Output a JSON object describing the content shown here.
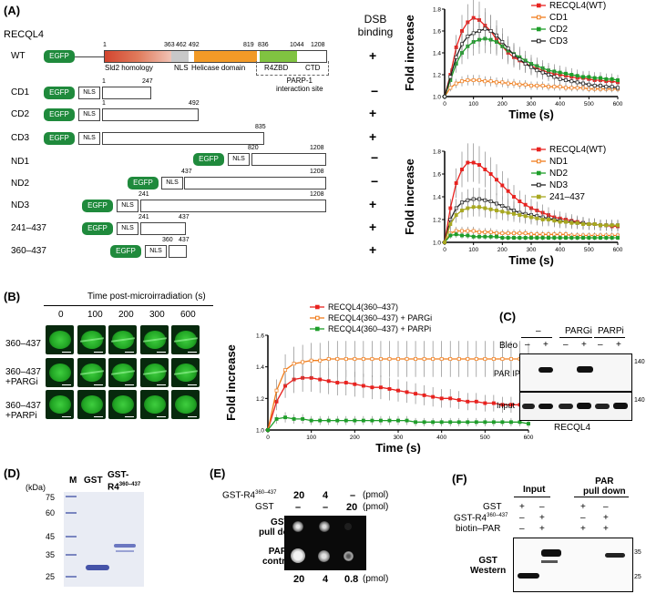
{
  "panelA": {
    "letter": "(A)",
    "protein": "RECQL4",
    "dsb_header_1": "DSB",
    "dsb_header_2": "binding",
    "domains": {
      "sld2": "Sld2 homology",
      "nls": "NLS",
      "helicase": "Helicase domain",
      "r4zbd": "R4ZBD",
      "ctd": "CTD",
      "parp": "PARP-1",
      "parp2": "interaction site"
    },
    "wt_numbers": [
      "1",
      "363",
      "462",
      "492",
      "819",
      "836",
      "1044",
      "1208"
    ],
    "constructs": [
      {
        "name": "WT",
        "dsb": "+"
      },
      {
        "name": "CD1",
        "dsb": "−",
        "n1": "1",
        "n2": "247"
      },
      {
        "name": "CD2",
        "dsb": "+",
        "n1": "1",
        "n2": "492"
      },
      {
        "name": "CD3",
        "dsb": "+",
        "n2": "835"
      },
      {
        "name": "ND1",
        "dsb": "−",
        "n1": "820",
        "n2": "1208"
      },
      {
        "name": "ND2",
        "dsb": "−",
        "n1": "437",
        "n2": "1208"
      },
      {
        "name": "ND3",
        "dsb": "+",
        "n1": "241",
        "n2": "1208"
      },
      {
        "name": "241–437",
        "dsb": "+",
        "n1": "241",
        "n2": "437"
      },
      {
        "name": "360–437",
        "dsb": "+",
        "n1": "360",
        "n2": "437"
      }
    ],
    "egfp": "EGFP",
    "nls": "NLS"
  },
  "chart_data": [
    {
      "type": "line",
      "title": "",
      "xlabel": "Time (s)",
      "ylabel": "Fold increase",
      "xlim": [
        0,
        600
      ],
      "ylim": [
        1.0,
        1.8
      ],
      "x": [
        0,
        20,
        40,
        60,
        80,
        100,
        120,
        140,
        160,
        180,
        200,
        220,
        240,
        260,
        280,
        300,
        320,
        340,
        360,
        380,
        400,
        420,
        440,
        460,
        480,
        500,
        520,
        540,
        560,
        580,
        600
      ],
      "series": [
        {
          "name": "RECQL4(WT)",
          "color": "#e8221f",
          "values": [
            1.0,
            1.2,
            1.45,
            1.6,
            1.68,
            1.72,
            1.7,
            1.65,
            1.6,
            1.52,
            1.46,
            1.4,
            1.36,
            1.33,
            1.3,
            1.28,
            1.26,
            1.24,
            1.22,
            1.21,
            1.2,
            1.19,
            1.18,
            1.17,
            1.17,
            1.16,
            1.15,
            1.15,
            1.14,
            1.14,
            1.13
          ]
        },
        {
          "name": "CD1",
          "color": "#f07d1c",
          "values": [
            1.0,
            1.08,
            1.12,
            1.14,
            1.15,
            1.15,
            1.15,
            1.14,
            1.14,
            1.13,
            1.13,
            1.12,
            1.12,
            1.11,
            1.11,
            1.1,
            1.1,
            1.1,
            1.09,
            1.09,
            1.09,
            1.08,
            1.08,
            1.08,
            1.08,
            1.07,
            1.07,
            1.07,
            1.07,
            1.07,
            1.07
          ]
        },
        {
          "name": "CD2",
          "color": "#1e9e2a",
          "values": [
            1.0,
            1.15,
            1.3,
            1.4,
            1.46,
            1.5,
            1.52,
            1.53,
            1.52,
            1.5,
            1.46,
            1.42,
            1.39,
            1.36,
            1.33,
            1.3,
            1.28,
            1.26,
            1.24,
            1.23,
            1.22,
            1.21,
            1.2,
            1.19,
            1.18,
            1.18,
            1.17,
            1.17,
            1.16,
            1.16,
            1.15
          ]
        },
        {
          "name": "CD3",
          "color": "#222222",
          "values": [
            1.0,
            1.18,
            1.36,
            1.48,
            1.55,
            1.58,
            1.6,
            1.62,
            1.6,
            1.56,
            1.5,
            1.44,
            1.38,
            1.34,
            1.3,
            1.27,
            1.24,
            1.22,
            1.2,
            1.18,
            1.16,
            1.15,
            1.14,
            1.13,
            1.12,
            1.11,
            1.1,
            1.1,
            1.09,
            1.09,
            1.08
          ]
        }
      ]
    },
    {
      "type": "line",
      "title": "",
      "xlabel": "Time (s)",
      "ylabel": "Fold increase",
      "xlim": [
        0,
        600
      ],
      "ylim": [
        1.0,
        1.8
      ],
      "x": [
        0,
        20,
        40,
        60,
        80,
        100,
        120,
        140,
        160,
        180,
        200,
        220,
        240,
        260,
        280,
        300,
        320,
        340,
        360,
        380,
        400,
        420,
        440,
        460,
        480,
        500,
        520,
        540,
        560,
        580,
        600
      ],
      "series": [
        {
          "name": "RECQL4(WT)",
          "color": "#e8221f",
          "values": [
            1.0,
            1.3,
            1.52,
            1.64,
            1.7,
            1.7,
            1.68,
            1.64,
            1.6,
            1.55,
            1.5,
            1.45,
            1.4,
            1.36,
            1.33,
            1.3,
            1.28,
            1.26,
            1.24,
            1.22,
            1.21,
            1.2,
            1.19,
            1.18,
            1.17,
            1.16,
            1.16,
            1.15,
            1.15,
            1.14,
            1.14
          ]
        },
        {
          "name": "ND1",
          "color": "#f07d1c",
          "values": [
            1.0,
            1.08,
            1.1,
            1.1,
            1.1,
            1.1,
            1.09,
            1.09,
            1.09,
            1.08,
            1.08,
            1.08,
            1.08,
            1.08,
            1.08,
            1.07,
            1.07,
            1.07,
            1.07,
            1.07,
            1.07,
            1.07,
            1.06,
            1.06,
            1.06,
            1.06,
            1.06,
            1.06,
            1.06,
            1.06,
            1.06
          ]
        },
        {
          "name": "ND2",
          "color": "#1e9e2a",
          "values": [
            1.0,
            1.06,
            1.07,
            1.06,
            1.06,
            1.05,
            1.05,
            1.05,
            1.05,
            1.05,
            1.04,
            1.04,
            1.04,
            1.04,
            1.04,
            1.04,
            1.04,
            1.04,
            1.04,
            1.04,
            1.04,
            1.04,
            1.04,
            1.04,
            1.04,
            1.04,
            1.04,
            1.04,
            1.04,
            1.04,
            1.04
          ]
        },
        {
          "name": "ND3",
          "color": "#222222",
          "values": [
            1.0,
            1.2,
            1.3,
            1.35,
            1.37,
            1.38,
            1.38,
            1.37,
            1.36,
            1.34,
            1.32,
            1.3,
            1.28,
            1.26,
            1.25,
            1.24,
            1.23,
            1.22,
            1.21,
            1.2,
            1.19,
            1.18,
            1.18,
            1.17,
            1.17,
            1.16,
            1.16,
            1.15,
            1.15,
            1.15,
            1.15
          ]
        },
        {
          "name": "241–437",
          "color": "#a8a820",
          "values": [
            1.0,
            1.16,
            1.24,
            1.28,
            1.3,
            1.31,
            1.31,
            1.3,
            1.29,
            1.28,
            1.27,
            1.26,
            1.25,
            1.24,
            1.23,
            1.22,
            1.21,
            1.2,
            1.2,
            1.19,
            1.18,
            1.18,
            1.17,
            1.17,
            1.16,
            1.16,
            1.16,
            1.15,
            1.15,
            1.15,
            1.15
          ]
        }
      ]
    },
    {
      "type": "line",
      "title": "",
      "xlabel": "Time (s)",
      "ylabel": "Fold increase",
      "xlim": [
        0,
        600
      ],
      "ylim": [
        1.0,
        1.6
      ],
      "x": [
        0,
        20,
        40,
        60,
        80,
        100,
        120,
        140,
        160,
        180,
        200,
        220,
        240,
        260,
        280,
        300,
        320,
        340,
        360,
        380,
        400,
        420,
        440,
        460,
        480,
        500,
        520,
        540,
        560,
        580,
        600
      ],
      "series": [
        {
          "name": "RECQL4(360–437)",
          "color": "#e8221f",
          "values": [
            1.0,
            1.18,
            1.28,
            1.32,
            1.33,
            1.33,
            1.32,
            1.31,
            1.3,
            1.3,
            1.29,
            1.28,
            1.27,
            1.27,
            1.26,
            1.25,
            1.24,
            1.23,
            1.22,
            1.21,
            1.2,
            1.2,
            1.19,
            1.18,
            1.18,
            1.17,
            1.17,
            1.16,
            1.16,
            1.16,
            1.15
          ]
        },
        {
          "name": "RECQL4(360–437) + PARGi",
          "color": "#f07d1c",
          "values": [
            1.0,
            1.25,
            1.38,
            1.42,
            1.43,
            1.44,
            1.44,
            1.45,
            1.45,
            1.45,
            1.45,
            1.45,
            1.45,
            1.45,
            1.45,
            1.45,
            1.45,
            1.45,
            1.45,
            1.45,
            1.45,
            1.45,
            1.45,
            1.45,
            1.45,
            1.45,
            1.45,
            1.45,
            1.45,
            1.45,
            1.44
          ]
        },
        {
          "name": "RECQL4(360–437) + PARPi",
          "color": "#1e9e2a",
          "values": [
            1.0,
            1.07,
            1.08,
            1.07,
            1.07,
            1.06,
            1.06,
            1.06,
            1.06,
            1.06,
            1.06,
            1.06,
            1.06,
            1.06,
            1.06,
            1.06,
            1.06,
            1.05,
            1.05,
            1.05,
            1.05,
            1.05,
            1.05,
            1.05,
            1.05,
            1.05,
            1.05,
            1.05,
            1.05,
            1.05,
            1.04
          ]
        }
      ]
    }
  ],
  "panelB": {
    "letter": "(B)",
    "header": "Time post-microirradiation (s)",
    "times": [
      "0",
      "100",
      "200",
      "300",
      "600"
    ],
    "rows": [
      "360–437",
      "360–437",
      "+PARGi",
      "360–437",
      "+PARPi"
    ]
  },
  "panelC": {
    "letter": "(C)",
    "groups": [
      "–",
      "PARGi",
      "PARPi"
    ],
    "bleo": "Bleo",
    "signs": [
      "–",
      "+",
      "–",
      "+",
      "–",
      "+"
    ],
    "par_ip": "PAR IP",
    "input": "Input",
    "mw1": "140",
    "mw2": "140",
    "footer": "RECQL4"
  },
  "panelD": {
    "letter": "(D)",
    "kda": "(kDa)",
    "lane_m": "M",
    "lane_gst": "GST",
    "lane_gstr4": "GST-",
    "lane_gstr4b": "R4",
    "lane_sup": "360–437",
    "markers": [
      "75",
      "60",
      "45",
      "35",
      "25"
    ]
  },
  "panelE": {
    "letter": "(E)",
    "row1_label": "GST-R4",
    "row1_sup": "360–437",
    "row1_vals": [
      "20",
      "4",
      "–"
    ],
    "row1_unit": "(pmol)",
    "row2_label": "GST",
    "row2_vals": [
      "–",
      "–",
      "20"
    ],
    "row2_unit": "(pmol)",
    "gst_pd_1": "GST",
    "gst_pd_2": "pull down",
    "par_c_1": "PAR",
    "par_c_2": "control",
    "bottom_vals": [
      "20",
      "4",
      "0.8"
    ],
    "bottom_unit": "(pmol)"
  },
  "panelF": {
    "letter": "(F)",
    "input": "Input",
    "par_pd_1": "PAR",
    "par_pd_2": "pull down",
    "rows": [
      "GST",
      "GST-R4",
      "biotin–PAR"
    ],
    "row2_sup": "360–437",
    "signs": [
      [
        "+",
        "–",
        "+",
        "–"
      ],
      [
        "–",
        "+",
        "–",
        "+"
      ],
      [
        "–",
        "+",
        "+",
        "+"
      ]
    ],
    "western_1": "GST",
    "western_2": "Western",
    "mw": [
      "35",
      "25"
    ]
  }
}
